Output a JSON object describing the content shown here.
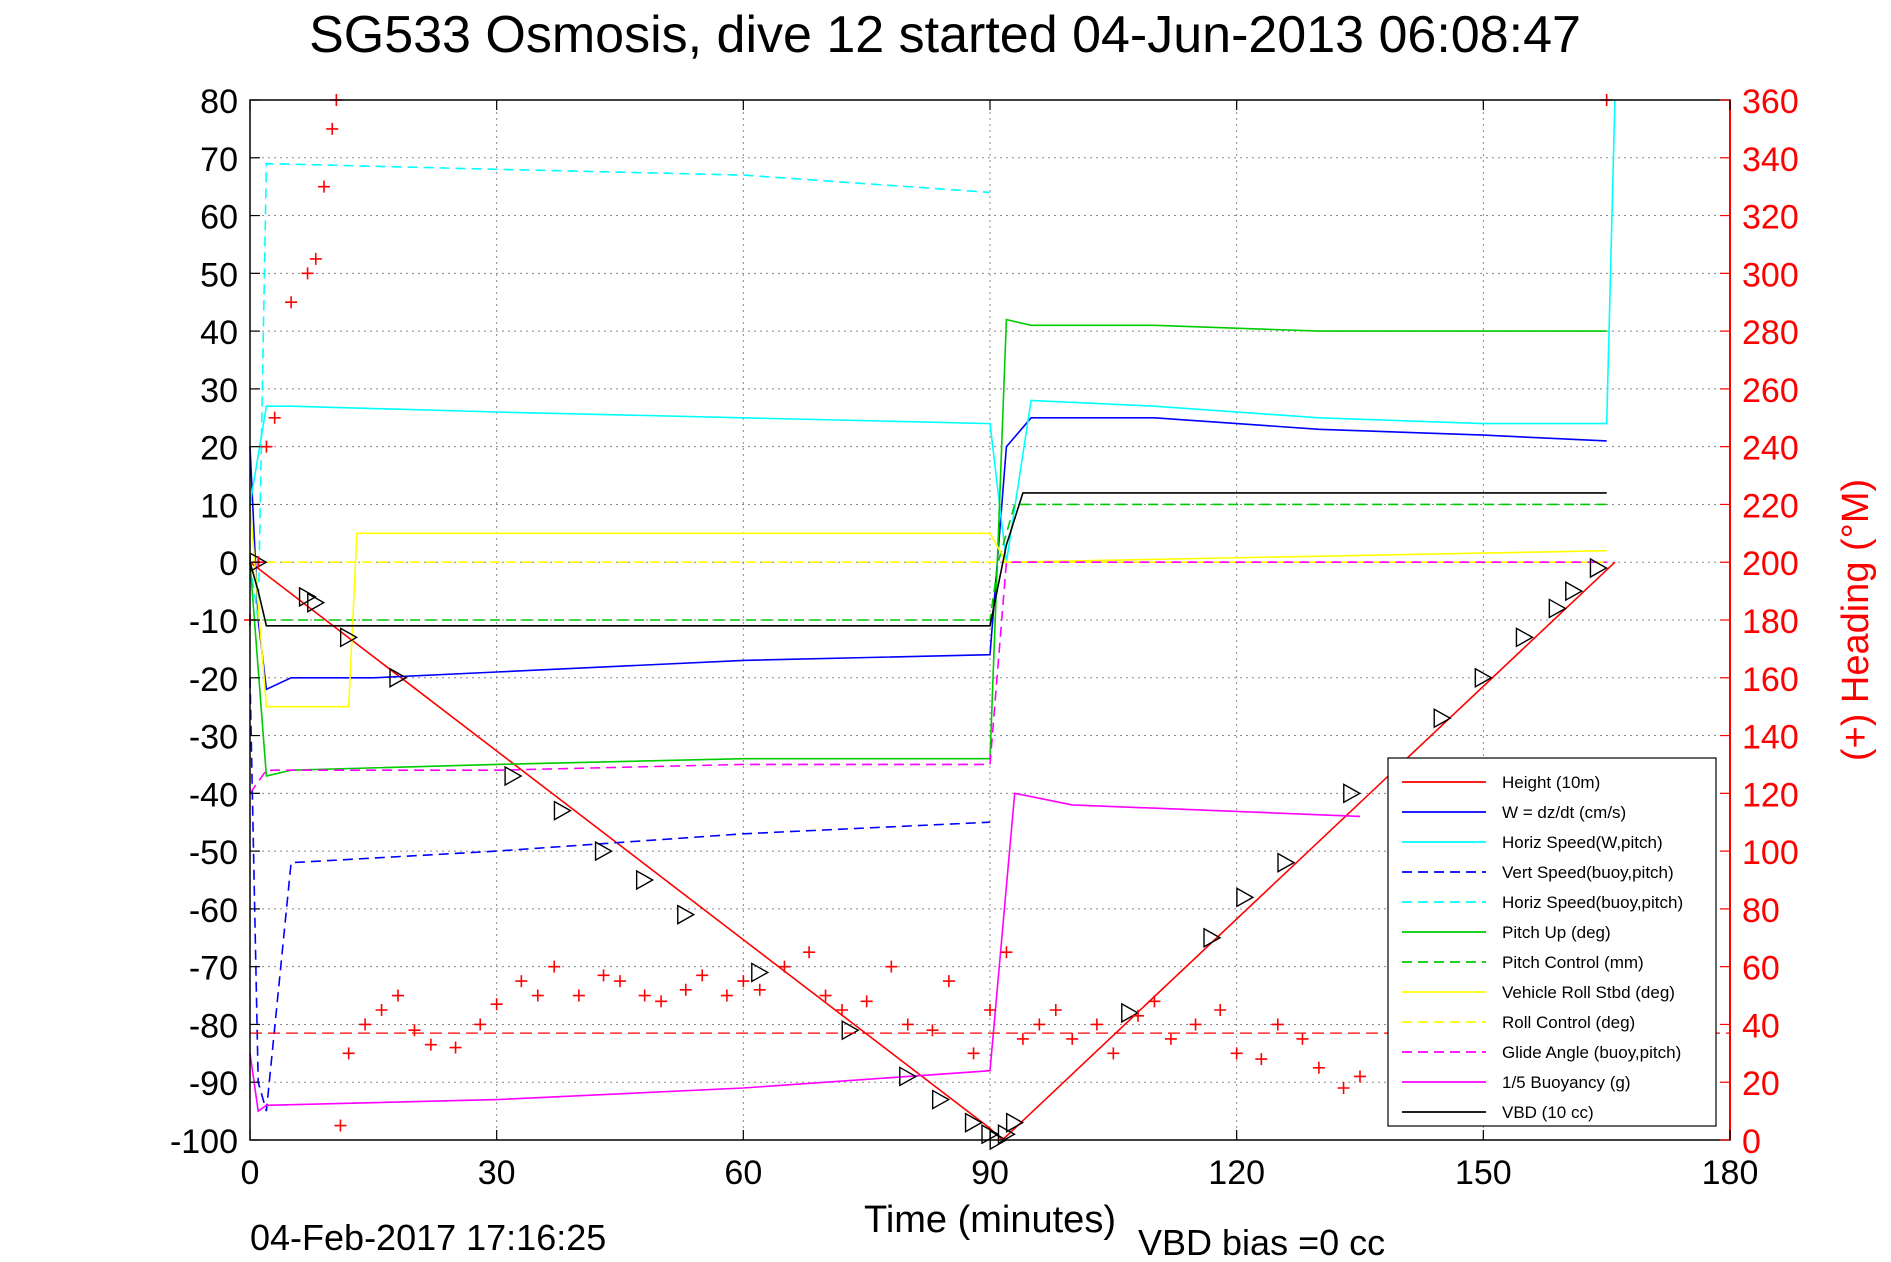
{
  "chart_data": {
    "type": "line",
    "title": "SG533 Osmosis, dive 12 started 04-Jun-2013 06:08:47",
    "xlabel": "Time (minutes)",
    "ylabel": "",
    "y2label": "(+) Heading (°M)",
    "xlim": [
      0,
      180
    ],
    "ylim": [
      -100,
      80
    ],
    "y2lim": [
      0,
      360
    ],
    "xticks": [
      "0",
      "30",
      "60",
      "90",
      "120",
      "150",
      "180"
    ],
    "yticks": [
      "80",
      "70",
      "60",
      "50",
      "40",
      "30",
      "20",
      "10",
      "0",
      "-10",
      "-20",
      "-30",
      "-40",
      "-50",
      "-60",
      "-70",
      "-80",
      "-90",
      "-100"
    ],
    "y2ticks": [
      "360",
      "340",
      "320",
      "300",
      "280",
      "260",
      "240",
      "220",
      "200",
      "180",
      "160",
      "140",
      "120",
      "100",
      "80",
      "60",
      "40",
      "20",
      "0"
    ],
    "grid": true,
    "legend_position": "bottom-right",
    "footer_date": "04-Feb-2017 17:16:25",
    "footer_bias": "VBD bias =0 cc",
    "series": [
      {
        "name": "Height (10m)",
        "color": "#ff0000",
        "style": "solid",
        "x": [
          0,
          90,
          91.5,
          93,
          166
        ],
        "y": [
          0,
          -98,
          -100,
          -98,
          0
        ]
      },
      {
        "name": "W = dz/dt (cm/s)",
        "color": "#0000ff",
        "style": "solid",
        "x": [
          0,
          1,
          2,
          5,
          15,
          30,
          60,
          90,
          92,
          95,
          110,
          130,
          150,
          165
        ],
        "y": [
          20,
          -10,
          -22,
          -20,
          -20,
          -19,
          -17,
          -16,
          20,
          25,
          25,
          23,
          22,
          21
        ]
      },
      {
        "name": "Horiz Speed(W,pitch)",
        "color": "#00ffff",
        "style": "solid",
        "x": [
          0,
          2,
          5,
          30,
          60,
          90,
          92,
          95,
          110,
          130,
          150,
          165,
          166
        ],
        "y": [
          10,
          27,
          27,
          26,
          25,
          24,
          0,
          28,
          27,
          25,
          24,
          24,
          80
        ]
      },
      {
        "name": "Vert Speed(buoy,pitch)",
        "color": "#0000ff",
        "style": "dashed",
        "x": [
          0,
          1,
          2,
          5,
          30,
          60,
          90,
          92,
          95,
          110,
          130,
          150,
          165
        ],
        "y": [
          -20,
          -90,
          -95,
          -52,
          -50,
          -47,
          -45,
          null,
          null,
          null,
          null,
          null,
          null
        ]
      },
      {
        "name": "Horiz Speed(buoy,pitch)",
        "color": "#00ffff",
        "style": "dashed",
        "x": [
          0,
          1,
          2,
          30,
          60,
          90
        ],
        "y": [
          0,
          -10,
          69,
          68,
          67,
          64
        ]
      },
      {
        "name": "Pitch Up (deg)",
        "color": "#00cc00",
        "style": "solid",
        "x": [
          0,
          2,
          5,
          30,
          60,
          90,
          92,
          95,
          110,
          130,
          150,
          165
        ],
        "y": [
          0,
          -37,
          -36,
          -35,
          -34,
          -34,
          42,
          41,
          41,
          40,
          40,
          40
        ]
      },
      {
        "name": "Pitch Control (mm)",
        "color": "#00cc00",
        "style": "dashed",
        "x": [
          0,
          2,
          90,
          91,
          93,
          165
        ],
        "y": [
          -10,
          -10,
          -10,
          0,
          10,
          10
        ]
      },
      {
        "name": "Vehicle Roll Stbd (deg)",
        "color": "#ffff00",
        "style": "solid",
        "x": [
          0,
          2,
          12,
          13,
          30,
          60,
          90,
          92,
          165
        ],
        "y": [
          10,
          -25,
          -25,
          5,
          5,
          5,
          5,
          0,
          2
        ]
      },
      {
        "name": "Roll Control (deg)",
        "color": "#ffff00",
        "style": "dashed",
        "x": [
          0,
          2,
          90,
          92,
          165
        ],
        "y": [
          0,
          0,
          0,
          0,
          0
        ]
      },
      {
        "name": "Glide Angle (buoy,pitch)",
        "color": "#ff00ff",
        "style": "dashed",
        "x": [
          0,
          2,
          30,
          60,
          90,
          92,
          165
        ],
        "y": [
          -40,
          -36,
          -36,
          -35,
          -35,
          0,
          0
        ]
      },
      {
        "name": "1/5 Buoyancy (g)",
        "color": "#ff00ff",
        "style": "solid",
        "x": [
          0,
          1,
          2,
          30,
          60,
          90,
          93,
          100,
          135
        ],
        "y": [
          -85,
          -95,
          -94,
          -93,
          -91,
          -88,
          -40,
          -42,
          -44
        ]
      },
      {
        "name": "VBD (10 cc)",
        "color": "#000000",
        "style": "solid",
        "x": [
          0,
          1,
          2,
          90,
          92,
          94,
          165
        ],
        "y": [
          0,
          -5,
          -11,
          -11,
          3,
          12,
          12
        ]
      }
    ],
    "heading_series": {
      "name": "Heading",
      "color": "#ff0000",
      "marker": "+",
      "axis": "right",
      "reference_line": 37,
      "x": [
        0,
        1,
        2,
        3,
        5,
        7,
        8,
        9,
        10,
        10.5,
        11,
        12,
        14,
        16,
        18,
        20,
        22,
        25,
        28,
        30,
        33,
        35,
        37,
        40,
        43,
        45,
        48,
        50,
        53,
        55,
        58,
        60,
        62,
        65,
        68,
        70,
        72,
        75,
        78,
        80,
        83,
        85,
        88,
        90,
        92,
        94,
        96,
        98,
        100,
        103,
        105,
        108,
        110,
        112,
        115,
        118,
        120,
        123,
        125,
        128,
        130,
        133,
        135,
        165
      ],
      "y": [
        180,
        200,
        240,
        250,
        290,
        300,
        305,
        330,
        350,
        360,
        5,
        30,
        40,
        45,
        50,
        38,
        33,
        32,
        40,
        47,
        55,
        50,
        60,
        50,
        57,
        55,
        50,
        48,
        52,
        57,
        50,
        55,
        52,
        60,
        65,
        50,
        45,
        48,
        60,
        40,
        38,
        55,
        30,
        45,
        65,
        35,
        40,
        45,
        35,
        40,
        30,
        43,
        48,
        35,
        40,
        45,
        30,
        28,
        40,
        35,
        25,
        18,
        22,
        360
      ]
    },
    "triangle_markers": {
      "x": [
        1,
        7,
        8,
        12,
        18,
        32,
        38,
        43,
        48,
        53,
        62,
        73,
        80,
        84,
        88,
        90,
        91,
        92,
        93,
        107,
        117,
        121,
        126,
        134,
        145,
        150,
        155,
        159,
        161,
        164
      ],
      "y": [
        0,
        -6,
        -7,
        -13,
        -20,
        -37,
        -43,
        -50,
        -55,
        -61,
        -71,
        -81,
        -89,
        -93,
        -97,
        -99,
        -100,
        -99,
        -97,
        -78,
        -65,
        -58,
        -52,
        -40,
        -27,
        -20,
        -13,
        -8,
        -5,
        -1
      ]
    }
  }
}
